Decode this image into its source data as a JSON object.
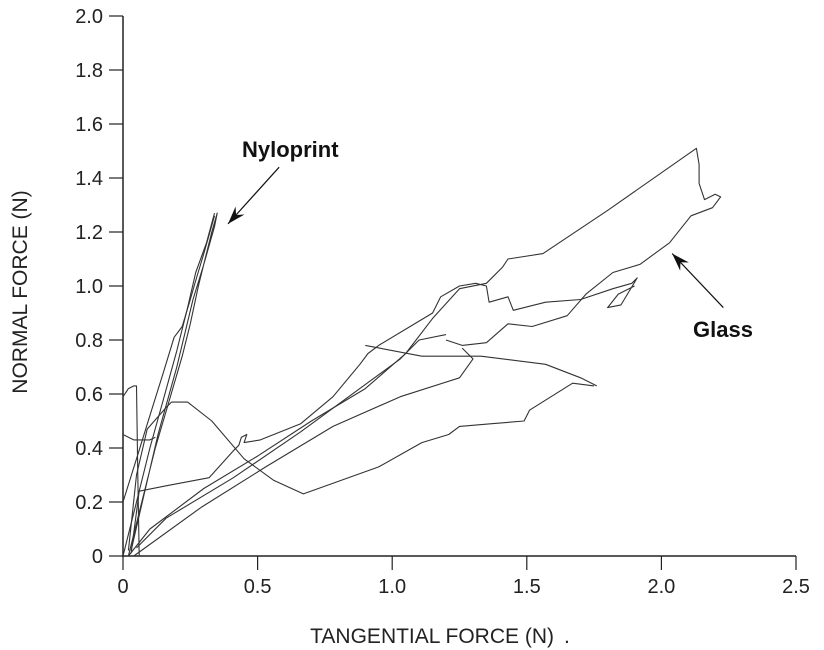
{
  "chart_data": {
    "type": "line",
    "title": "",
    "xlabel": "TANGENTIAL FORCE (N)",
    "xlabel_suffix": ".",
    "ylabel": "NORMAL FORCE (N)",
    "xlim": [
      0,
      2.5
    ],
    "ylim": [
      0,
      2.0
    ],
    "xticks": [
      "0",
      "0.5",
      "1.0",
      "1.5",
      "2.0",
      "2.5"
    ],
    "yticks": [
      "0",
      "0.2",
      "0.4",
      "0.6",
      "0.8",
      "1.0",
      "1.2",
      "1.4",
      "1.6",
      "1.8",
      "2.0"
    ],
    "grid": false,
    "line_color": "#333333",
    "annotations": [
      {
        "text": "Nyloprint",
        "arrow_from": [
          0.58,
          1.44
        ],
        "arrow_to": [
          0.39,
          1.23
        ]
      },
      {
        "text": "Glass",
        "arrow_from": [
          2.23,
          0.92
        ],
        "arrow_to": [
          2.04,
          1.12
        ]
      }
    ],
    "series": [
      {
        "group": "Nyloprint",
        "points": [
          [
            0,
            0
          ],
          [
            0.05,
            0.2
          ],
          [
            0.1,
            0.4
          ],
          [
            0.15,
            0.58
          ],
          [
            0.2,
            0.76
          ],
          [
            0.24,
            0.92
          ],
          [
            0.27,
            1.05
          ],
          [
            0.31,
            1.16
          ],
          [
            0.34,
            1.27
          ]
        ]
      },
      {
        "group": "Nyloprint",
        "points": [
          [
            0.02,
            0
          ],
          [
            0.07,
            0.2
          ],
          [
            0.12,
            0.4
          ],
          [
            0.17,
            0.57
          ],
          [
            0.22,
            0.74
          ],
          [
            0.25,
            0.86
          ],
          [
            0.28,
            1.0
          ],
          [
            0.33,
            1.2
          ],
          [
            0.35,
            1.27
          ],
          [
            0.34,
            1.22
          ],
          [
            0.3,
            1.08
          ],
          [
            0.26,
            0.95
          ],
          [
            0.2,
            0.7
          ],
          [
            0.13,
            0.45
          ],
          [
            0.06,
            0.15
          ],
          [
            0.03,
            0.02
          ]
        ]
      },
      {
        "group": "Nyloprint",
        "points": [
          [
            0,
            0.2
          ],
          [
            0.05,
            0.36
          ],
          [
            0.1,
            0.52
          ],
          [
            0.15,
            0.68
          ],
          [
            0.19,
            0.81
          ],
          [
            0.22,
            0.85
          ],
          [
            0.25,
            0.95
          ],
          [
            0.27,
            1.02
          ],
          [
            0.3,
            1.12
          ],
          [
            0.34,
            1.26
          ]
        ]
      },
      {
        "group": "Nyloprint",
        "points": [
          [
            0,
            0.59
          ],
          [
            0.02,
            0.62
          ],
          [
            0.04,
            0.63
          ],
          [
            0.05,
            0.63
          ],
          [
            0.055,
            0.3
          ],
          [
            0.06,
            0
          ]
        ]
      },
      {
        "group": "Nyloprint",
        "points": [
          [
            0,
            0.45
          ],
          [
            0.02,
            0.44
          ],
          [
            0.04,
            0.43
          ],
          [
            0.1,
            0.43
          ],
          [
            0.12,
            0.44
          ]
        ]
      },
      {
        "group": "Glass",
        "points": [
          [
            0.02,
            0
          ],
          [
            0.1,
            0.1
          ],
          [
            0.3,
            0.25
          ],
          [
            0.5,
            0.37
          ],
          [
            0.7,
            0.5
          ],
          [
            0.9,
            0.62
          ],
          [
            1.05,
            0.75
          ],
          [
            1.15,
            0.88
          ],
          [
            1.25,
            0.99
          ],
          [
            1.35,
            1.01
          ],
          [
            1.41,
            1.07
          ],
          [
            1.43,
            1.1
          ],
          [
            1.56,
            1.12
          ],
          [
            1.8,
            1.28
          ],
          [
            2.13,
            1.51
          ],
          [
            2.14,
            1.45
          ],
          [
            2.14,
            1.38
          ],
          [
            2.16,
            1.32
          ],
          [
            2.2,
            1.34
          ],
          [
            2.22,
            1.33
          ],
          [
            2.19,
            1.29
          ],
          [
            2.11,
            1.26
          ],
          [
            2.03,
            1.16
          ],
          [
            1.92,
            1.08
          ],
          [
            1.82,
            1.05
          ],
          [
            1.72,
            0.97
          ],
          [
            1.65,
            0.89
          ],
          [
            1.52,
            0.85
          ],
          [
            1.43,
            0.86
          ],
          [
            1.35,
            0.79
          ],
          [
            1.26,
            0.78
          ],
          [
            1.2,
            0.8
          ]
        ]
      },
      {
        "group": "Glass",
        "points": [
          [
            0.95,
            0.78
          ],
          [
            1.1,
            0.87
          ],
          [
            1.15,
            0.9
          ],
          [
            1.18,
            0.96
          ],
          [
            1.25,
            1.0
          ],
          [
            1.31,
            1.01
          ],
          [
            1.35,
            1.0
          ],
          [
            1.36,
            0.94
          ],
          [
            1.43,
            0.96
          ],
          [
            1.45,
            0.91
          ],
          [
            1.57,
            0.94
          ],
          [
            1.7,
            0.95
          ],
          [
            1.82,
            0.99
          ],
          [
            1.89,
            1.01
          ],
          [
            1.91,
            1.03
          ],
          [
            1.88,
            0.98
          ],
          [
            1.85,
            0.93
          ],
          [
            1.8,
            0.92
          ],
          [
            1.84,
            0.97
          ],
          [
            1.9,
            1.0
          ]
        ]
      },
      {
        "group": "Glass",
        "points": [
          [
            0.03,
            0.01
          ],
          [
            0.06,
            0.24
          ],
          [
            0.16,
            0.26
          ],
          [
            0.32,
            0.29
          ],
          [
            0.41,
            0.39
          ],
          [
            0.43,
            0.41
          ],
          [
            0.44,
            0.44
          ],
          [
            0.46,
            0.45
          ],
          [
            0.45,
            0.42
          ],
          [
            0.51,
            0.43
          ],
          [
            0.66,
            0.49
          ],
          [
            0.78,
            0.59
          ],
          [
            0.88,
            0.71
          ],
          [
            0.91,
            0.75
          ],
          [
            0.95,
            0.78
          ]
        ]
      },
      {
        "group": "Glass",
        "points": [
          [
            0.02,
            0.02
          ],
          [
            0.05,
            0.3
          ],
          [
            0.09,
            0.47
          ],
          [
            0.16,
            0.55
          ],
          [
            0.18,
            0.57
          ],
          [
            0.24,
            0.57
          ],
          [
            0.33,
            0.5
          ],
          [
            0.45,
            0.36
          ],
          [
            0.56,
            0.28
          ],
          [
            0.67,
            0.23
          ],
          [
            0.95,
            0.33
          ],
          [
            1.11,
            0.42
          ],
          [
            1.21,
            0.45
          ],
          [
            1.25,
            0.48
          ],
          [
            1.37,
            0.49
          ],
          [
            1.49,
            0.5
          ],
          [
            1.51,
            0.54
          ],
          [
            1.67,
            0.64
          ],
          [
            1.75,
            0.63
          ]
        ]
      },
      {
        "group": "Glass",
        "points": [
          [
            0.05,
            0.03
          ],
          [
            0.16,
            0.14
          ],
          [
            0.41,
            0.29
          ],
          [
            0.66,
            0.46
          ],
          [
            1.03,
            0.73
          ],
          [
            1.1,
            0.8
          ],
          [
            1.2,
            0.82
          ]
        ]
      },
      {
        "group": "Glass",
        "points": [
          [
            0.04,
            0
          ],
          [
            0.29,
            0.18
          ],
          [
            0.53,
            0.33
          ],
          [
            0.78,
            0.48
          ],
          [
            1.03,
            0.59
          ],
          [
            1.25,
            0.66
          ],
          [
            1.3,
            0.73
          ],
          [
            1.26,
            0.77
          ]
        ]
      },
      {
        "group": "Glass",
        "points": [
          [
            0.9,
            0.78
          ],
          [
            1.11,
            0.74
          ],
          [
            1.33,
            0.74
          ],
          [
            1.57,
            0.71
          ],
          [
            1.7,
            0.66
          ],
          [
            1.76,
            0.63
          ]
        ]
      }
    ]
  }
}
